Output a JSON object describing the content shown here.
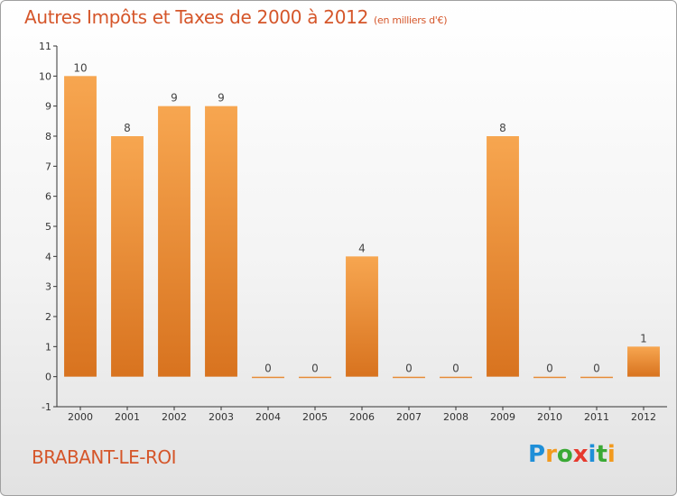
{
  "title": "Autres Impôts et Taxes de 2000 à 2012",
  "subtitle": "(en milliers d'€)",
  "commune": "BRABANT-LE-ROI",
  "brand": {
    "letters": [
      "P",
      "r",
      "o",
      "x",
      "i",
      "t",
      "i"
    ],
    "colors": [
      "#1f8fd8",
      "#f29a1e",
      "#3aa935",
      "#e63a2e",
      "#1f8fd8",
      "#3aa935",
      "#f29a1e"
    ]
  },
  "colors": {
    "bar_light": "#f7a650",
    "bar_dark": "#d8731f",
    "axis": "#333333",
    "grid": "#b8b8b8",
    "title": "#d5562a"
  },
  "chart_data": {
    "type": "bar",
    "categories": [
      "2000",
      "2001",
      "2002",
      "2003",
      "2004",
      "2005",
      "2006",
      "2007",
      "2008",
      "2009",
      "2010",
      "2011",
      "2012"
    ],
    "values": [
      10,
      8,
      9,
      9,
      0,
      0,
      4,
      0,
      0,
      8,
      0,
      0,
      1
    ],
    "value_labels": [
      "10",
      "8",
      "9",
      "9",
      "0",
      "0",
      "4",
      "0",
      "0",
      "8",
      "0",
      "0",
      "1"
    ],
    "y_ticks": [
      "-1",
      "0",
      "1",
      "2",
      "3",
      "4",
      "5",
      "6",
      "7",
      "8",
      "9",
      "10",
      "11"
    ],
    "ylim": [
      -1,
      11
    ],
    "grid": false
  }
}
